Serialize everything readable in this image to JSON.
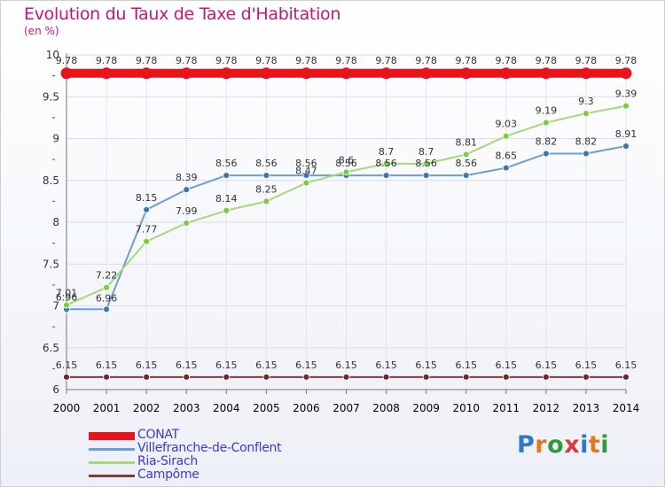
{
  "title": "Evolution du Taux de Taxe d'Habitation",
  "unit": "(en %)",
  "logo_text": "Proxiti",
  "logo_colors": [
    "#2f7ac8",
    "#e07a1d",
    "#2f9a3f",
    "#d93b3b",
    "#2f7ac8",
    "#e07a1d",
    "#2f9a3f"
  ],
  "chart_data": {
    "type": "line",
    "x": [
      "2000",
      "2001",
      "2002",
      "2003",
      "2004",
      "2005",
      "2006",
      "2007",
      "2008",
      "2009",
      "2010",
      "2011",
      "2012",
      "2013",
      "2014"
    ],
    "ylim": [
      6,
      10
    ],
    "yticks": [
      "6",
      "6.5",
      "7",
      "7.5",
      "8",
      "8.5",
      "9",
      "9.5",
      "10"
    ],
    "xlabel": "",
    "ylabel": "",
    "legend_position": "bottom-left",
    "series": [
      {
        "name": "CONAT",
        "color": "#e8141c",
        "values": [
          9.78,
          9.78,
          9.78,
          9.78,
          9.78,
          9.78,
          9.78,
          9.78,
          9.78,
          9.78,
          9.78,
          9.78,
          9.78,
          9.78,
          9.78
        ],
        "labels": [
          "9.78",
          "9.78",
          "9.78",
          "9.78",
          "9.78",
          "9.78",
          "9.78",
          "9.78",
          "9.78",
          "9.78",
          "9.78",
          "9.78",
          "9.78",
          "9.78",
          "9.78"
        ]
      },
      {
        "name": "Villefranche-de-Conflent",
        "color": "#6a9fd4",
        "marker": "#3a78b5",
        "values": [
          6.96,
          6.96,
          8.15,
          8.39,
          8.56,
          8.56,
          8.56,
          8.56,
          8.56,
          8.56,
          8.56,
          8.65,
          8.82,
          8.82,
          8.91
        ],
        "labels": [
          "6.96",
          "6.96",
          "8.15",
          "8.39",
          "8.56",
          "8.56",
          "8.56",
          "8.56",
          "8.56",
          "8.56",
          "8.56",
          "8.65",
          "8.82",
          "8.82",
          "8.91"
        ]
      },
      {
        "name": "Ria-Sirach",
        "color": "#a6d87a",
        "marker": "#7ccc3c",
        "values": [
          7.01,
          7.22,
          7.77,
          7.99,
          8.14,
          8.25,
          8.47,
          8.6,
          8.7,
          8.7,
          8.81,
          9.03,
          9.19,
          9.3,
          9.39
        ],
        "labels": [
          "7.01",
          "7.22",
          "7.77",
          "7.99",
          "8.14",
          "8.25",
          "8.47",
          "8.6",
          "8.7",
          "8.7",
          "8.81",
          "9.03",
          "9.19",
          "9.3",
          "9.39"
        ]
      },
      {
        "name": "Campôme",
        "color": "#7a3b3b",
        "marker": "#6b2a2a",
        "values": [
          6.15,
          6.15,
          6.15,
          6.15,
          6.15,
          6.15,
          6.15,
          6.15,
          6.15,
          6.15,
          6.15,
          6.15,
          6.15,
          6.15,
          6.15
        ],
        "labels": [
          "6.15",
          "6.15",
          "6.15",
          "6.15",
          "6.15",
          "6.15",
          "6.15",
          "6.15",
          "6.15",
          "6.15",
          "6.15",
          "6.15",
          "6.15",
          "6.15",
          "6.15"
        ]
      }
    ]
  }
}
